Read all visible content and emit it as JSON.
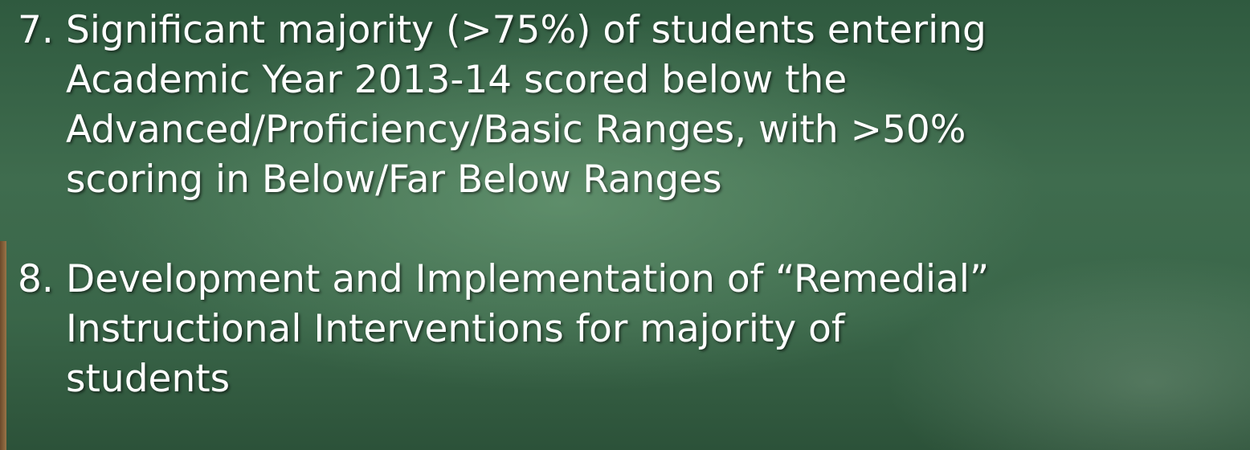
{
  "items": [
    {
      "number": "7.",
      "lines": [
        "Significant majority (>75%) of students entering",
        "Academic Year 2013-14 scored below the",
        "Advanced/Proficiency/Basic Ranges, with >50%",
        "scoring in Below/Far Below Ranges"
      ]
    },
    {
      "number": "8.",
      "lines": [
        "Development and Implementation of “Remedial”",
        "Instructional Interventions for majority of",
        "students"
      ]
    }
  ]
}
